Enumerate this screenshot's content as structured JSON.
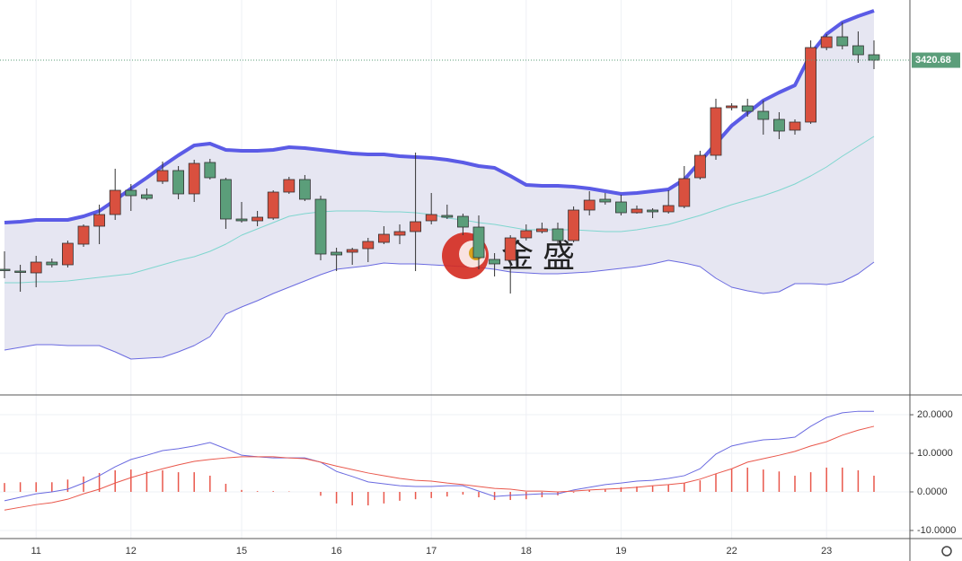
{
  "chart_data": [
    {
      "type": "candlestick",
      "categories": [
        null,
        null,
        "11",
        null,
        null,
        null,
        null,
        null,
        "12",
        null,
        null,
        null,
        null,
        null,
        null,
        "15",
        null,
        null,
        null,
        null,
        null,
        "16",
        null,
        null,
        null,
        null,
        null,
        "17",
        null,
        null,
        null,
        null,
        null,
        "18",
        null,
        null,
        null,
        null,
        null,
        "19",
        null,
        null,
        null,
        null,
        null,
        null,
        "22",
        null,
        null,
        null,
        null,
        null,
        "23",
        null,
        null,
        null
      ],
      "open": [
        3304.2,
        3303.2,
        3302.2,
        3308.2,
        3306.7,
        3318.2,
        3328.2,
        3334.7,
        3348.2,
        3345.7,
        3353.2,
        3359.2,
        3346.2,
        3363.7,
        3354.2,
        3332.2,
        3331.2,
        3332.7,
        3347.2,
        3354.2,
        3343.2,
        3313.7,
        3313.7,
        3315.7,
        3319.2,
        3323.2,
        3325.2,
        3331.2,
        3334.2,
        3333.7,
        3327.7,
        3309.7,
        3309.2,
        3321.7,
        3325.2,
        3326.7,
        3320.2,
        3337.2,
        3343.2,
        3341.7,
        3335.7,
        3337.2,
        3336.2,
        3339.2,
        3355.2,
        3367.7,
        3394.2,
        3395.2,
        3392.2,
        3387.7,
        3381.7,
        3386.2,
        3427.7,
        3433.7,
        3428.7,
        3423.7
      ],
      "high": [
        3314.2,
        3306.7,
        3311.7,
        3310.2,
        3320.2,
        3329.2,
        3340.2,
        3360.2,
        3351.7,
        3349.2,
        3364.2,
        3361.7,
        3365.2,
        3365.7,
        3355.2,
        3341.7,
        3336.7,
        3348.2,
        3355.7,
        3356.7,
        3345.2,
        3316.2,
        3316.2,
        3321.7,
        3328.2,
        3329.2,
        3369.2,
        3346.7,
        3340.2,
        3335.2,
        3334.2,
        3313.2,
        3323.2,
        3329.2,
        3330.2,
        3330.2,
        3339.2,
        3347.7,
        3346.7,
        3345.7,
        3339.7,
        3338.2,
        3348.2,
        3361.7,
        3370.2,
        3399.2,
        3396.7,
        3399.2,
        3398.2,
        3391.7,
        3387.7,
        3431.7,
        3435.2,
        3441.7,
        3436.7,
        3431.7
      ],
      "low": [
        3299.2,
        3291.7,
        3294.2,
        3305.2,
        3305.2,
        3316.7,
        3318.2,
        3331.7,
        3336.7,
        3342.7,
        3351.7,
        3343.2,
        3341.7,
        3354.2,
        3326.7,
        3330.2,
        3328.2,
        3331.7,
        3346.2,
        3342.2,
        3309.2,
        3303.2,
        3306.7,
        3308.2,
        3318.2,
        3318.2,
        3303.2,
        3329.2,
        3332.2,
        3323.2,
        3304.2,
        3300.2,
        3290.7,
        3320.2,
        3324.2,
        3318.2,
        3319.2,
        3334.2,
        3340.2,
        3334.2,
        3335.2,
        3332.7,
        3335.2,
        3338.2,
        3354.2,
        3365.2,
        3392.7,
        3389.2,
        3379.2,
        3376.7,
        3379.2,
        3385.2,
        3426.2,
        3426.7,
        3419.2,
        3415.7
      ],
      "close": [
        3303.7,
        3302.7,
        3308.2,
        3306.7,
        3318.7,
        3328.2,
        3334.7,
        3348.2,
        3345.2,
        3343.7,
        3359.2,
        3346.2,
        3363.2,
        3355.2,
        3332.2,
        3331.2,
        3333.2,
        3347.2,
        3354.2,
        3343.2,
        3312.7,
        3312.2,
        3315.2,
        3319.7,
        3323.7,
        3325.2,
        3330.7,
        3334.7,
        3333.2,
        3327.7,
        3310.7,
        3307.2,
        3321.7,
        3325.7,
        3326.7,
        3320.2,
        3337.2,
        3342.7,
        3341.7,
        3335.7,
        3337.7,
        3336.2,
        3339.7,
        3354.7,
        3367.7,
        3394.2,
        3395.2,
        3392.2,
        3387.7,
        3381.2,
        3386.2,
        3427.7,
        3433.7,
        3428.7,
        3423.7,
        3420.68
      ],
      "up_color": "#d9503f",
      "down_color": "#5b9e7a",
      "series": [
        {
          "color": "#5b5be6",
          "values": [
            3330.2,
            3330.7,
            3331.7,
            3331.7,
            3331.7,
            3333.7,
            3336.7,
            3342.7,
            3349.2,
            3355.2,
            3361.7,
            3367.7,
            3373.2,
            3374.2,
            3370.7,
            3370.2,
            3370.2,
            3370.7,
            3372.2,
            3371.7,
            3370.7,
            3369.7,
            3368.7,
            3368.2,
            3368.2,
            3367.2,
            3366.7,
            3366.2,
            3365.2,
            3363.7,
            3361.7,
            3360.7,
            3356.2,
            3351.2,
            3350.7,
            3350.7,
            3350.2,
            3349.2,
            3347.7,
            3346.2,
            3346.7,
            3347.7,
            3348.7,
            3354.2,
            3364.2,
            3374.2,
            3384.2,
            3391.2,
            3398.2,
            3402.7,
            3406.7,
            3424.2,
            3435.2,
            3441.7,
            3445.2,
            3448.2
          ]
        },
        {
          "color": "#7fd6cf",
          "values": [
            3296.7,
            3296.7,
            3297.2,
            3297.2,
            3297.7,
            3298.7,
            3299.7,
            3300.7,
            3301.7,
            3304.2,
            3306.7,
            3309.2,
            3311.2,
            3314.2,
            3318.2,
            3323.2,
            3326.7,
            3330.2,
            3333.7,
            3335.2,
            3336.2,
            3336.7,
            3336.7,
            3336.7,
            3336.2,
            3336.2,
            3335.7,
            3334.7,
            3332.7,
            3331.7,
            3330.2,
            3329.2,
            3327.7,
            3326.2,
            3326.2,
            3326.2,
            3326.2,
            3325.7,
            3325.2,
            3325.2,
            3326.2,
            3327.7,
            3329.2,
            3331.7,
            3334.2,
            3337.2,
            3340.2,
            3342.7,
            3345.2,
            3348.2,
            3351.7,
            3356.2,
            3361.2,
            3367.2,
            3372.7,
            3378.2
          ]
        },
        {
          "color": "#6a6ae0",
          "values": [
            3259.2,
            3260.7,
            3262.2,
            3262.2,
            3261.7,
            3261.7,
            3261.7,
            3258.2,
            3254.2,
            3254.7,
            3255.2,
            3258.2,
            3261.7,
            3266.7,
            3279.2,
            3283.2,
            3286.7,
            3290.7,
            3294.2,
            3297.7,
            3301.2,
            3304.2,
            3305.2,
            3306.2,
            3307.7,
            3307.2,
            3307.2,
            3306.7,
            3306.2,
            3305.7,
            3305.2,
            3304.2,
            3302.7,
            3302.2,
            3301.7,
            3301.7,
            3302.2,
            3302.7,
            3303.7,
            3304.7,
            3305.7,
            3307.2,
            3309.2,
            3307.7,
            3305.7,
            3299.2,
            3294.2,
            3292.2,
            3290.7,
            3291.7,
            3296.2,
            3296.2,
            3295.7,
            3297.2,
            3301.7,
            3308.2
          ]
        }
      ],
      "band_fill": "#e6e6f2",
      "ylim": [
        3234.2,
        3454.2
      ],
      "last_price": 3420.68,
      "watermark": "金 盛"
    },
    {
      "type": "macd",
      "ylim": [
        -12.1,
        24.9
      ],
      "yticks": [
        {
          "value": 20,
          "label": "20.0000"
        },
        {
          "value": 10,
          "label": "10.0000"
        },
        {
          "value": 0,
          "label": "0.0000"
        },
        {
          "value": -10,
          "label": "-10.0000"
        }
      ],
      "series": [
        {
          "color": "#6a6ae0",
          "values": [
            -2.3,
            -1.4,
            -0.5,
            0,
            0.7,
            2.3,
            4.2,
            6.5,
            8.4,
            9.5,
            10.7,
            11.2,
            11.9,
            12.8,
            11.2,
            9.5,
            9.1,
            8.8,
            8.8,
            8.8,
            7.7,
            5.3,
            4.0,
            2.6,
            2.1,
            1.6,
            1.4,
            1.4,
            1.6,
            1.6,
            0.2,
            -1.2,
            -0.9,
            -0.7,
            -0.5,
            -0.5,
            0.5,
            1.2,
            1.9,
            2.3,
            2.8,
            3.0,
            3.5,
            4.2,
            6.0,
            9.8,
            11.9,
            12.8,
            13.5,
            13.7,
            14.2,
            17.0,
            19.3,
            20.5,
            20.9,
            20.9
          ]
        },
        {
          "color": "#e9574b",
          "values": [
            -4.7,
            -4.0,
            -3.3,
            -2.8,
            -1.9,
            -0.5,
            0.7,
            2.3,
            3.7,
            4.9,
            6.0,
            7.0,
            7.9,
            8.4,
            8.8,
            9.1,
            9.1,
            9.1,
            8.8,
            8.6,
            7.7,
            6.7,
            5.8,
            4.9,
            4.2,
            3.5,
            3.0,
            2.8,
            2.3,
            1.9,
            1.4,
            0.9,
            0.7,
            0.2,
            0.2,
            0,
            0.2,
            0.5,
            0.7,
            0.9,
            1.2,
            1.6,
            1.9,
            2.3,
            3.3,
            4.7,
            6.0,
            7.7,
            8.6,
            9.5,
            10.5,
            11.9,
            13.0,
            14.7,
            16.0,
            17.0
          ]
        }
      ],
      "bars": {
        "color": "#e9574b",
        "values": [
          2.3,
          2.5,
          2.5,
          2.5,
          3.2,
          4.0,
          4.9,
          5.6,
          5.8,
          5.3,
          5.6,
          5.1,
          5.1,
          4.2,
          2.1,
          0.5,
          0.2,
          0.2,
          0.1,
          0,
          -1.0,
          -3.0,
          -3.5,
          -3.5,
          -3.0,
          -2.3,
          -1.9,
          -1.6,
          -1.2,
          -0.7,
          -1.4,
          -2.1,
          -2.1,
          -1.9,
          -1.4,
          -0.9,
          -0.2,
          0.5,
          0.7,
          1.2,
          1.4,
          1.6,
          1.9,
          2.3,
          3.0,
          4.7,
          6.0,
          6.3,
          5.8,
          5.3,
          4.2,
          5.1,
          6.3,
          6.3,
          5.6,
          4.2
        ]
      },
      "grid": true
    }
  ]
}
